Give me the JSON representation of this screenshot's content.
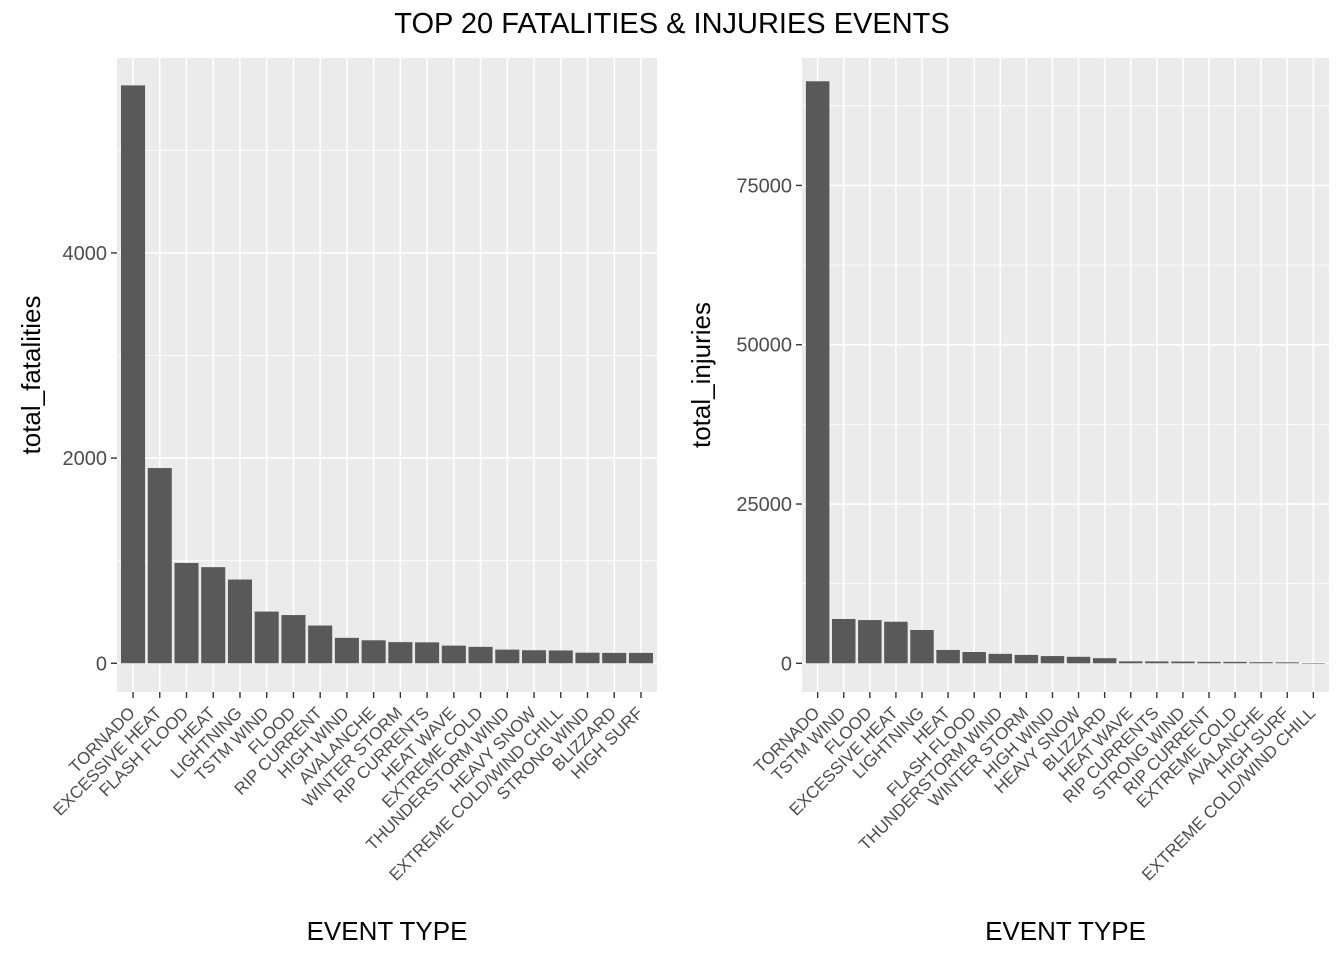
{
  "title": "TOP 20 FATALITIES & INJURIES EVENTS",
  "colors": {
    "panel": "#ebebeb",
    "grid": "#ffffff",
    "bar": "#595959",
    "tick": "#333333",
    "text": "#4d4d4d"
  },
  "chart_data": [
    {
      "type": "bar",
      "xlabel": "EVENT TYPE",
      "ylabel": "total_fatalities",
      "ylim": [
        -280,
        5900
      ],
      "yticks": [
        0,
        2000,
        4000
      ],
      "ytick_labels": [
        "0",
        "2000",
        "4000"
      ],
      "grid": true,
      "categories": [
        "TORNADO",
        "EXCESSIVE HEAT",
        "FLASH FLOOD",
        "HEAT",
        "LIGHTNING",
        "TSTM WIND",
        "FLOOD",
        "RIP CURRENT",
        "HIGH WIND",
        "AVALANCHE",
        "WINTER STORM",
        "RIP CURRENTS",
        "HEAT WAVE",
        "EXTREME COLD",
        "THUNDERSTORM WIND",
        "HEAVY SNOW",
        "EXTREME COLD/WIND CHILL",
        "STRONG WIND",
        "BLIZZARD",
        "HIGH SURF"
      ],
      "values": [
        5633,
        1903,
        978,
        937,
        816,
        504,
        470,
        368,
        248,
        224,
        206,
        204,
        172,
        160,
        133,
        127,
        125,
        103,
        101,
        101
      ]
    },
    {
      "type": "bar",
      "xlabel": "EVENT TYPE",
      "ylabel": "total_injuries",
      "ylim": [
        -4500,
        95000
      ],
      "yticks": [
        0,
        25000,
        50000,
        75000
      ],
      "ytick_labels": [
        "0",
        "25000",
        "50000",
        "75000"
      ],
      "grid": true,
      "categories": [
        "TORNADO",
        "TSTM WIND",
        "FLOOD",
        "EXCESSIVE HEAT",
        "LIGHTNING",
        "HEAT",
        "FLASH FLOOD",
        "THUNDERSTORM WIND",
        "WINTER STORM",
        "HIGH WIND",
        "HEAVY SNOW",
        "BLIZZARD",
        "HEAT WAVE",
        "RIP CURRENTS",
        "STRONG WIND",
        "RIP CURRENT",
        "EXTREME COLD",
        "AVALANCHE",
        "HIGH SURF",
        "EXTREME COLD/WIND CHILL"
      ],
      "values": [
        91346,
        6957,
        6789,
        6525,
        5230,
        2100,
        1777,
        1488,
        1321,
        1137,
        1021,
        805,
        309,
        297,
        280,
        232,
        231,
        170,
        152,
        24
      ]
    }
  ]
}
